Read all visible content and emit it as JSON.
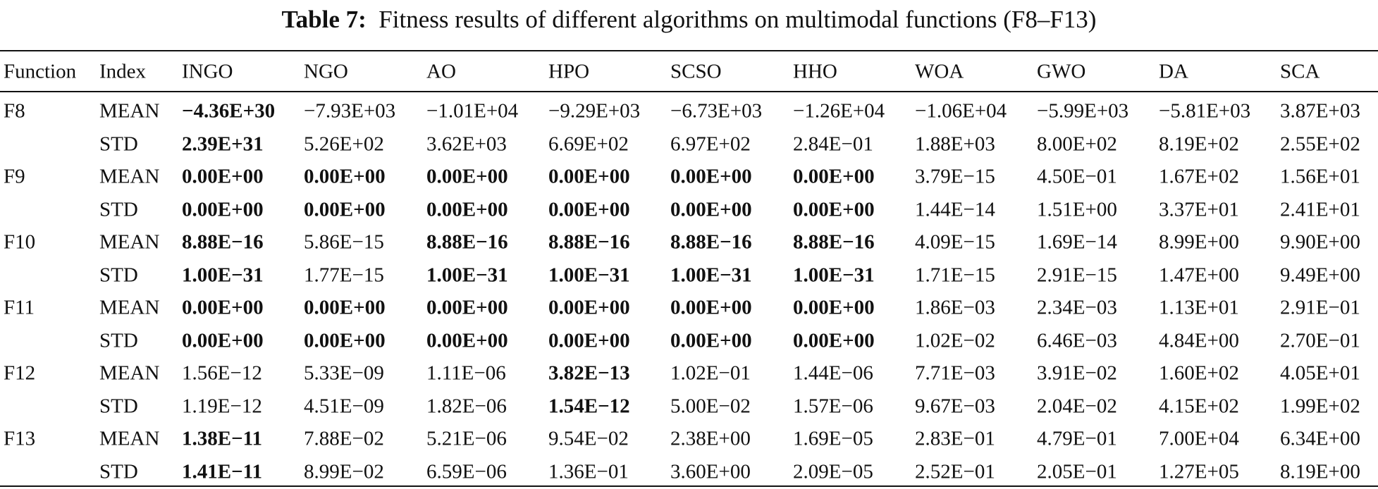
{
  "title": {
    "label": "Table 7:",
    "text": "Fitness results of different algorithms on multimodal functions (F8–F13)"
  },
  "table": {
    "header": [
      "Function",
      "Index",
      "INGO",
      "NGO",
      "AO",
      "HPO",
      "SCSO",
      "HHO",
      "WOA",
      "GWO",
      "DA",
      "SCA"
    ],
    "rows": [
      {
        "function": "F8",
        "index": "MEAN",
        "cells": [
          "−4.36E+30",
          "−7.93E+03",
          "−1.01E+04",
          "−9.29E+03",
          "−6.73E+03",
          "−1.26E+04",
          "−1.06E+04",
          "−5.99E+03",
          "−5.81E+03",
          "3.87E+03"
        ],
        "bold": [
          0
        ]
      },
      {
        "index": "STD",
        "cells": [
          "2.39E+31",
          "5.26E+02",
          "3.62E+03",
          "6.69E+02",
          "6.97E+02",
          "2.84E−01",
          "1.88E+03",
          "8.00E+02",
          "8.19E+02",
          "2.55E+02"
        ],
        "bold": [
          0
        ]
      },
      {
        "function": "F9",
        "index": "MEAN",
        "cells": [
          "0.00E+00",
          "0.00E+00",
          "0.00E+00",
          "0.00E+00",
          "0.00E+00",
          "0.00E+00",
          "3.79E−15",
          "4.50E−01",
          "1.67E+02",
          "1.56E+01"
        ],
        "bold": [
          0,
          1,
          2,
          3,
          4,
          5
        ]
      },
      {
        "index": "STD",
        "cells": [
          "0.00E+00",
          "0.00E+00",
          "0.00E+00",
          "0.00E+00",
          "0.00E+00",
          "0.00E+00",
          "1.44E−14",
          "1.51E+00",
          "3.37E+01",
          "2.41E+01"
        ],
        "bold": [
          0,
          1,
          2,
          3,
          4,
          5
        ]
      },
      {
        "function": "F10",
        "index": "MEAN",
        "cells": [
          "8.88E−16",
          "5.86E−15",
          "8.88E−16",
          "8.88E−16",
          "8.88E−16",
          "8.88E−16",
          "4.09E−15",
          "1.69E−14",
          "8.99E+00",
          "9.90E+00"
        ],
        "bold": [
          0,
          2,
          3,
          4,
          5
        ]
      },
      {
        "index": "STD",
        "cells": [
          "1.00E−31",
          "1.77E−15",
          "1.00E−31",
          "1.00E−31",
          "1.00E−31",
          "1.00E−31",
          "1.71E−15",
          "2.91E−15",
          "1.47E+00",
          "9.49E+00"
        ],
        "bold": [
          0,
          2,
          3,
          4,
          5
        ]
      },
      {
        "function": "F11",
        "index": "MEAN",
        "cells": [
          "0.00E+00",
          "0.00E+00",
          "0.00E+00",
          "0.00E+00",
          "0.00E+00",
          "0.00E+00",
          "1.86E−03",
          "2.34E−03",
          "1.13E+01",
          "2.91E−01"
        ],
        "bold": [
          0,
          1,
          2,
          3,
          4,
          5
        ]
      },
      {
        "index": "STD",
        "cells": [
          "0.00E+00",
          "0.00E+00",
          "0.00E+00",
          "0.00E+00",
          "0.00E+00",
          "0.00E+00",
          "1.02E−02",
          "6.46E−03",
          "4.84E+00",
          "2.70E−01"
        ],
        "bold": [
          0,
          1,
          2,
          3,
          4,
          5
        ]
      },
      {
        "function": "F12",
        "index": "MEAN",
        "cells": [
          "1.56E−12",
          "5.33E−09",
          "1.11E−06",
          "3.82E−13",
          "1.02E−01",
          "1.44E−06",
          "7.71E−03",
          "3.91E−02",
          "1.60E+02",
          "4.05E+01"
        ],
        "bold": [
          3
        ]
      },
      {
        "index": "STD",
        "cells": [
          "1.19E−12",
          "4.51E−09",
          "1.82E−06",
          "1.54E−12",
          "5.00E−02",
          "1.57E−06",
          "9.67E−03",
          "2.04E−02",
          "4.15E+02",
          "1.99E+02"
        ],
        "bold": [
          3
        ]
      },
      {
        "function": "F13",
        "index": "MEAN",
        "cells": [
          "1.38E−11",
          "7.88E−02",
          "5.21E−06",
          "9.54E−02",
          "2.38E+00",
          "1.69E−05",
          "2.83E−01",
          "4.79E−01",
          "7.00E+04",
          "6.34E+00"
        ],
        "bold": [
          0
        ]
      },
      {
        "index": "STD",
        "cells": [
          "1.41E−11",
          "8.99E−02",
          "6.59E−06",
          "1.36E−01",
          "3.60E+00",
          "2.09E−05",
          "2.52E−01",
          "2.05E−01",
          "1.27E+05",
          "8.19E+00"
        ],
        "bold": [
          0
        ]
      }
    ]
  }
}
